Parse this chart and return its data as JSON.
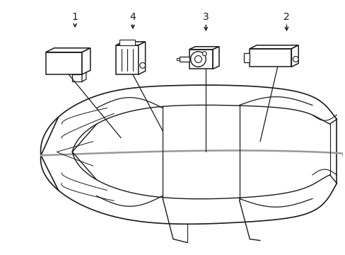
{
  "bg_color": "#ffffff",
  "line_color": "#1a1a1a",
  "gray_color": "#999999",
  "fig_width": 4.89,
  "fig_height": 3.6,
  "dpi": 100
}
